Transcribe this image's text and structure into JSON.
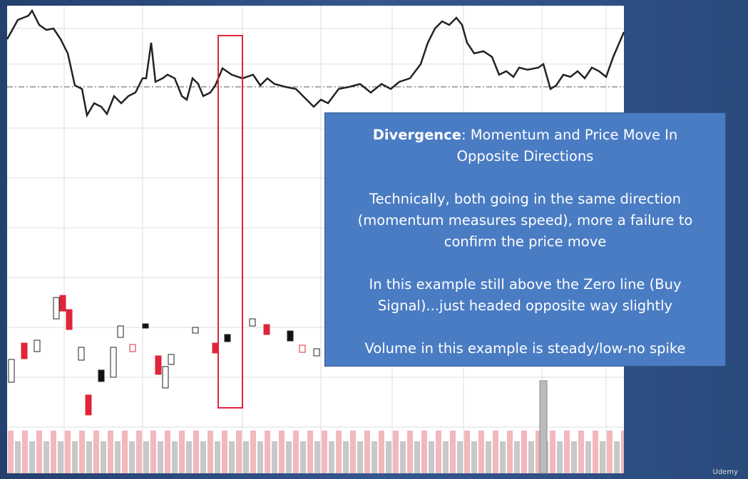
{
  "textbox": {
    "title_bold": "Divergence",
    "title_rest": ": Momentum and Price Move In Opposite Directions",
    "paragraphs": [
      "Technically, both going in the same direction (momentum measures speed), more a failure to confirm the price move",
      "In this example still above the Zero line (Buy Signal)...just headed opposite way slightly",
      "Volume in this example is steady/low-no spike"
    ]
  },
  "watermark": "Udemy"
}
